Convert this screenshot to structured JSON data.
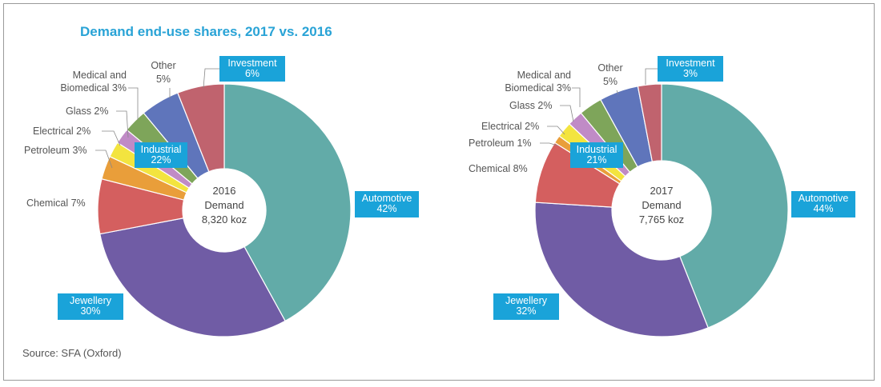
{
  "title": "Demand end-use shares, 2017 vs. 2016",
  "source": "Source: SFA (Oxford)",
  "colors": {
    "automotive": "#62aba8",
    "jewellery": "#705ca5",
    "chemical": "#d45f5f",
    "petroleum": "#e99e3a",
    "electrical": "#f3e43f",
    "glass": "#c08bc6",
    "medical": "#7ea55a",
    "other": "#5f75bb",
    "investment": "#c0636e",
    "label_box": "#1aa3d9"
  },
  "chart_data": [
    {
      "type": "pie",
      "variant": "donut",
      "title": "2016 Demand",
      "center": {
        "line1": "2016",
        "line2": "Demand",
        "line3": "8,320 koz"
      },
      "slices": [
        {
          "key": "automotive",
          "name": "Automotive",
          "value": 42,
          "label": "42%"
        },
        {
          "key": "jewellery",
          "name": "Jewellery",
          "value": 30,
          "label": "30%"
        },
        {
          "key": "chemical",
          "name": "Chemical",
          "value": 7,
          "label": "Chemical 7%"
        },
        {
          "key": "petroleum",
          "name": "Petroleum",
          "value": 3,
          "label": "Petroleum 3%"
        },
        {
          "key": "electrical",
          "name": "Electrical",
          "value": 2,
          "label": "Electrical 2%"
        },
        {
          "key": "glass",
          "name": "Glass",
          "value": 2,
          "label": "Glass 2%"
        },
        {
          "key": "medical",
          "name": "Medical and Biomedical",
          "value": 3,
          "label1": "Medical and",
          "label2": "Biomedical 3%"
        },
        {
          "key": "other",
          "name": "Other",
          "value": 5,
          "label1": "Other",
          "label2": "5%"
        },
        {
          "key": "investment",
          "name": "Investment",
          "value": 6,
          "label": "6%"
        }
      ],
      "industrial": {
        "name": "Industrial",
        "value": "22%"
      }
    },
    {
      "type": "pie",
      "variant": "donut",
      "title": "2017 Demand",
      "center": {
        "line1": "2017",
        "line2": "Demand",
        "line3": "7,765 koz"
      },
      "slices": [
        {
          "key": "automotive",
          "name": "Automotive",
          "value": 44,
          "label": "44%"
        },
        {
          "key": "jewellery",
          "name": "Jewellery",
          "value": 32,
          "label": "32%"
        },
        {
          "key": "chemical",
          "name": "Chemical",
          "value": 8,
          "label": "Chemical 8%"
        },
        {
          "key": "petroleum",
          "name": "Petroleum",
          "value": 1,
          "label": "Petroleum 1%"
        },
        {
          "key": "electrical",
          "name": "Electrical",
          "value": 2,
          "label": "Electrical 2%"
        },
        {
          "key": "glass",
          "name": "Glass",
          "value": 2,
          "label": "Glass 2%"
        },
        {
          "key": "medical",
          "name": "Medical and Biomedical",
          "value": 3,
          "label1": "Medical and",
          "label2": "Biomedical 3%"
        },
        {
          "key": "other",
          "name": "Other",
          "value": 5,
          "label1": "Other",
          "label2": "5%"
        },
        {
          "key": "investment",
          "name": "Investment",
          "value": 3,
          "label": "3%"
        }
      ],
      "industrial": {
        "name": "Industrial",
        "value": "21%"
      }
    }
  ]
}
